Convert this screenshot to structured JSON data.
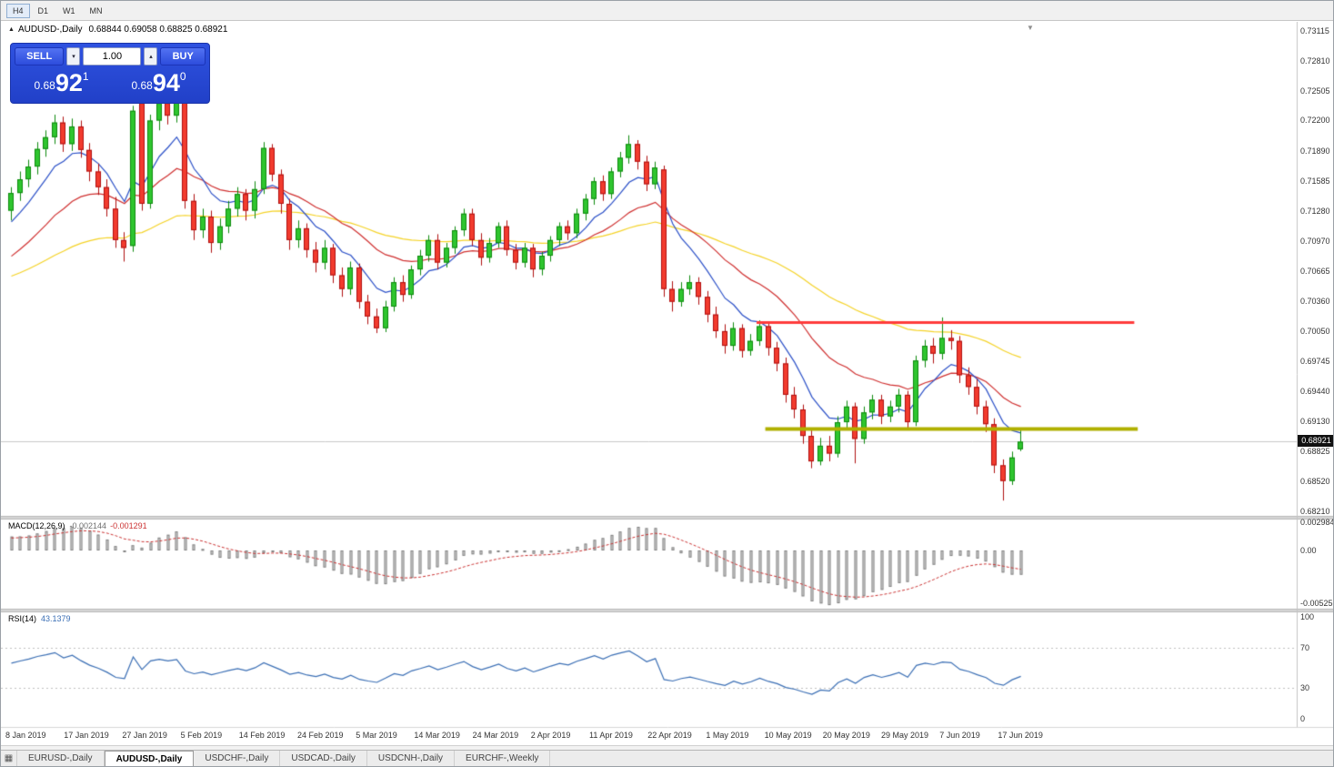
{
  "icons": {
    "oct_collapse": "▲",
    "spinner_up": "▴",
    "spinner_down": "▾",
    "shift_marker": "▼",
    "tabs_grid": "▦"
  },
  "toolbar": {
    "timeframes": [
      {
        "label": "H4",
        "active": true
      },
      {
        "label": "D1",
        "active": false
      },
      {
        "label": "W1",
        "active": false
      },
      {
        "label": "MN",
        "active": false
      }
    ]
  },
  "chart": {
    "title": "AUDUSD-,Daily",
    "ohlc_text": "0.68844 0.69058 0.68825 0.68921",
    "current_price": "0.68921"
  },
  "trade_panel": {
    "sell_label": "SELL",
    "buy_label": "BUY",
    "volume": "1.00",
    "sell_price": {
      "prefix": "0.68",
      "big": "92",
      "sup": "1"
    },
    "buy_price": {
      "prefix": "0.68",
      "big": "94",
      "sup": "0"
    }
  },
  "price_axis": {
    "labels": [
      "0.73115",
      "0.72810",
      "0.72505",
      "0.72200",
      "0.71890",
      "0.71585",
      "0.71280",
      "0.70970",
      "0.70665",
      "0.70360",
      "0.70050",
      "0.69745",
      "0.69440",
      "0.69130",
      "0.68825",
      "0.68520",
      "0.68210"
    ]
  },
  "macd_panel": {
    "name": "MACD(12,26,9)",
    "value_main": "-0.002144",
    "value_signal": "-0.001291",
    "axis": [
      "0.002984",
      "0.00",
      "-0.005256"
    ]
  },
  "rsi_panel": {
    "name": "RSI(14)",
    "value": "43.1379",
    "axis": [
      "100",
      "70",
      "30",
      "0"
    ]
  },
  "date_axis": [
    "8 Jan 2019",
    "17 Jan 2019",
    "27 Jan 2019",
    "5 Feb 2019",
    "14 Feb 2019",
    "24 Feb 2019",
    "5 Mar 2019",
    "14 Mar 2019",
    "24 Mar 2019",
    "2 Apr 2019",
    "11 Apr 2019",
    "22 Apr 2019",
    "1 May 2019",
    "10 May 2019",
    "20 May 2019",
    "29 May 2019",
    "7 Jun 2019",
    "17 Jun 2019"
  ],
  "tabs": [
    {
      "label": "EURUSD-,Daily",
      "active": false
    },
    {
      "label": "AUDUSD-,Daily",
      "active": true
    },
    {
      "label": "USDCHF-,Daily",
      "active": false
    },
    {
      "label": "USDCAD-,Daily",
      "active": false
    },
    {
      "label": "USDCNH-,Daily",
      "active": false
    },
    {
      "label": "EURCHF-,Weekly",
      "active": false
    }
  ],
  "chart_data": {
    "type": "candlestick",
    "symbol": "AUDUSD-",
    "timeframe": "Daily",
    "ohlc_current": {
      "open": 0.68844,
      "high": 0.69058,
      "low": 0.68825,
      "close": 0.68921
    },
    "current_price": 0.68921,
    "price_ticks": [
      0.73115,
      0.7281,
      0.72505,
      0.722,
      0.7189,
      0.71585,
      0.7128,
      0.7097,
      0.70665,
      0.7036,
      0.7005,
      0.69745,
      0.6944,
      0.6913,
      0.68825,
      0.6852,
      0.6821
    ],
    "candle_colors": {
      "up_fill": "#2fc52f",
      "up_border": "#0e8a0e",
      "down_fill": "#f23b2e",
      "down_border": "#b01010"
    },
    "candles": [
      [
        0.7128,
        0.7152,
        0.7118,
        0.7146
      ],
      [
        0.7146,
        0.7168,
        0.7138,
        0.716
      ],
      [
        0.716,
        0.718,
        0.7152,
        0.7173
      ],
      [
        0.7173,
        0.7198,
        0.7165,
        0.7191
      ],
      [
        0.7191,
        0.721,
        0.7183,
        0.7203
      ],
      [
        0.7203,
        0.7226,
        0.7196,
        0.7218
      ],
      [
        0.7218,
        0.7224,
        0.7188,
        0.7196
      ],
      [
        0.7196,
        0.7222,
        0.7189,
        0.7214
      ],
      [
        0.7214,
        0.722,
        0.7182,
        0.719
      ],
      [
        0.719,
        0.7197,
        0.7158,
        0.7168
      ],
      [
        0.7168,
        0.7176,
        0.7144,
        0.7152
      ],
      [
        0.7152,
        0.716,
        0.7122,
        0.713
      ],
      [
        0.713,
        0.7142,
        0.709,
        0.7098
      ],
      [
        0.7098,
        0.7106,
        0.7076,
        0.709
      ],
      [
        0.7092,
        0.7235,
        0.7086,
        0.723
      ],
      [
        0.7238,
        0.7242,
        0.7128,
        0.7135
      ],
      [
        0.7135,
        0.7226,
        0.713,
        0.722
      ],
      [
        0.722,
        0.7244,
        0.721,
        0.7238
      ],
      [
        0.7238,
        0.7248,
        0.7216,
        0.7225
      ],
      [
        0.7225,
        0.7245,
        0.7218,
        0.724
      ],
      [
        0.724,
        0.7243,
        0.713,
        0.7138
      ],
      [
        0.7138,
        0.7145,
        0.7098,
        0.7108
      ],
      [
        0.7108,
        0.713,
        0.71,
        0.7122
      ],
      [
        0.7122,
        0.7128,
        0.7085,
        0.7095
      ],
      [
        0.7095,
        0.712,
        0.7088,
        0.7112
      ],
      [
        0.7112,
        0.7138,
        0.7105,
        0.713
      ],
      [
        0.713,
        0.7152,
        0.7122,
        0.7145
      ],
      [
        0.7145,
        0.715,
        0.7118,
        0.7128
      ],
      [
        0.7128,
        0.7158,
        0.712,
        0.715
      ],
      [
        0.715,
        0.7198,
        0.7145,
        0.7192
      ],
      [
        0.7192,
        0.7196,
        0.7158,
        0.7165
      ],
      [
        0.7165,
        0.717,
        0.7125,
        0.7135
      ],
      [
        0.7135,
        0.714,
        0.7088,
        0.7098
      ],
      [
        0.7098,
        0.7118,
        0.709,
        0.711
      ],
      [
        0.711,
        0.7115,
        0.708,
        0.7088
      ],
      [
        0.7088,
        0.7096,
        0.7065,
        0.7075
      ],
      [
        0.7075,
        0.7098,
        0.7068,
        0.709
      ],
      [
        0.709,
        0.7094,
        0.7054,
        0.7062
      ],
      [
        0.7062,
        0.707,
        0.704,
        0.7048
      ],
      [
        0.7048,
        0.7076,
        0.7042,
        0.707
      ],
      [
        0.707,
        0.7074,
        0.7028,
        0.7035
      ],
      [
        0.7035,
        0.7042,
        0.7012,
        0.702
      ],
      [
        0.702,
        0.7028,
        0.7003,
        0.7008
      ],
      [
        0.7008,
        0.7036,
        0.7004,
        0.703
      ],
      [
        0.703,
        0.706,
        0.7025,
        0.7055
      ],
      [
        0.7055,
        0.7062,
        0.7035,
        0.7042
      ],
      [
        0.7042,
        0.7072,
        0.7038,
        0.7068
      ],
      [
        0.7068,
        0.7088,
        0.7062,
        0.7082
      ],
      [
        0.7082,
        0.7103,
        0.7076,
        0.7098
      ],
      [
        0.7098,
        0.7104,
        0.7068,
        0.7075
      ],
      [
        0.7075,
        0.7095,
        0.707,
        0.709
      ],
      [
        0.709,
        0.7112,
        0.7084,
        0.7108
      ],
      [
        0.7108,
        0.713,
        0.7102,
        0.7125
      ],
      [
        0.7125,
        0.713,
        0.7092,
        0.7098
      ],
      [
        0.7098,
        0.7105,
        0.7072,
        0.708
      ],
      [
        0.708,
        0.71,
        0.7075,
        0.7095
      ],
      [
        0.7095,
        0.7116,
        0.709,
        0.7112
      ],
      [
        0.7112,
        0.7118,
        0.7082,
        0.7088
      ],
      [
        0.7088,
        0.7094,
        0.7068,
        0.7075
      ],
      [
        0.7075,
        0.7095,
        0.707,
        0.709
      ],
      [
        0.709,
        0.7094,
        0.706,
        0.7068
      ],
      [
        0.7068,
        0.7086,
        0.7062,
        0.7082
      ],
      [
        0.7082,
        0.7102,
        0.7076,
        0.7098
      ],
      [
        0.7098,
        0.7116,
        0.7092,
        0.7112
      ],
      [
        0.7112,
        0.7118,
        0.7098,
        0.7105
      ],
      [
        0.7105,
        0.713,
        0.71,
        0.7125
      ],
      [
        0.7125,
        0.7145,
        0.7118,
        0.714
      ],
      [
        0.714,
        0.7162,
        0.7134,
        0.7158
      ],
      [
        0.7158,
        0.7164,
        0.7138,
        0.7145
      ],
      [
        0.7145,
        0.7172,
        0.714,
        0.7168
      ],
      [
        0.7168,
        0.7188,
        0.7162,
        0.7182
      ],
      [
        0.7182,
        0.7205,
        0.7176,
        0.7196
      ],
      [
        0.7196,
        0.72,
        0.717,
        0.7178
      ],
      [
        0.7178,
        0.7184,
        0.7148,
        0.7155
      ],
      [
        0.7155,
        0.7178,
        0.715,
        0.7172
      ],
      [
        0.717,
        0.7174,
        0.704,
        0.7048
      ],
      [
        0.7048,
        0.7056,
        0.7025,
        0.7035
      ],
      [
        0.7035,
        0.7055,
        0.703,
        0.7048
      ],
      [
        0.7048,
        0.7062,
        0.7042,
        0.7055
      ],
      [
        0.7055,
        0.706,
        0.7032,
        0.704
      ],
      [
        0.704,
        0.7046,
        0.7014,
        0.7022
      ],
      [
        0.7022,
        0.703,
        0.6998,
        0.7005
      ],
      [
        0.7005,
        0.7012,
        0.6982,
        0.699
      ],
      [
        0.699,
        0.7014,
        0.6985,
        0.7008
      ],
      [
        0.7008,
        0.7012,
        0.6978,
        0.6985
      ],
      [
        0.6985,
        0.7002,
        0.698,
        0.6995
      ],
      [
        0.6995,
        0.7016,
        0.699,
        0.701
      ],
      [
        0.701,
        0.7014,
        0.698,
        0.6988
      ],
      [
        0.6988,
        0.6994,
        0.6964,
        0.6972
      ],
      [
        0.6972,
        0.6978,
        0.6932,
        0.694
      ],
      [
        0.694,
        0.6948,
        0.6916,
        0.6925
      ],
      [
        0.6925,
        0.693,
        0.689,
        0.6898
      ],
      [
        0.6898,
        0.6904,
        0.6865,
        0.6872
      ],
      [
        0.6872,
        0.6896,
        0.6868,
        0.6888
      ],
      [
        0.6888,
        0.6898,
        0.6872,
        0.688
      ],
      [
        0.688,
        0.6918,
        0.6876,
        0.6912
      ],
      [
        0.6912,
        0.6934,
        0.6906,
        0.6928
      ],
      [
        0.6928,
        0.6932,
        0.687,
        0.6895
      ],
      [
        0.6895,
        0.6928,
        0.689,
        0.6922
      ],
      [
        0.6922,
        0.694,
        0.6915,
        0.6935
      ],
      [
        0.6935,
        0.694,
        0.691,
        0.6918
      ],
      [
        0.6918,
        0.6934,
        0.6912,
        0.6928
      ],
      [
        0.6928,
        0.6946,
        0.6922,
        0.694
      ],
      [
        0.694,
        0.6944,
        0.6905,
        0.6912
      ],
      [
        0.6912,
        0.698,
        0.6908,
        0.6975
      ],
      [
        0.6975,
        0.6996,
        0.6968,
        0.699
      ],
      [
        0.699,
        0.6998,
        0.6972,
        0.6982
      ],
      [
        0.6982,
        0.7019,
        0.6976,
        0.6998
      ],
      [
        0.6998,
        0.7006,
        0.6986,
        0.6995
      ],
      [
        0.6995,
        0.7,
        0.6952,
        0.696
      ],
      [
        0.696,
        0.6968,
        0.694,
        0.6948
      ],
      [
        0.6948,
        0.6956,
        0.692,
        0.6928
      ],
      [
        0.6928,
        0.6934,
        0.6902,
        0.691
      ],
      [
        0.691,
        0.6916,
        0.686,
        0.6868
      ],
      [
        0.6868,
        0.6874,
        0.6832,
        0.6852
      ],
      [
        0.6852,
        0.6882,
        0.6848,
        0.6876
      ],
      [
        0.68844,
        0.69058,
        0.68825,
        0.68921
      ]
    ],
    "moving_averages": [
      {
        "name": "fast",
        "period": 8,
        "seed": 0.7108,
        "color": "#2b50c8"
      },
      {
        "name": "medium",
        "period": 21,
        "seed": 0.7075,
        "color": "#d03030"
      },
      {
        "name": "slow",
        "period": 55,
        "seed": 0.7058,
        "color": "#f5d327"
      }
    ],
    "horizontal_lines": [
      {
        "name": "resistance",
        "price": 0.7014,
        "color": "#ff3b3b",
        "width": 3,
        "from_index": 86,
        "to_index": 129.4
      },
      {
        "name": "support",
        "price": 0.6906,
        "color": "#b0b000",
        "width": 4,
        "from_index": 87,
        "to_index": 129.8
      }
    ],
    "indicators": {
      "macd": {
        "fast": 12,
        "slow": 26,
        "signal": 9,
        "current_main": -0.002144,
        "current_signal": -0.001291,
        "axis_ticks": [
          0.002984,
          0,
          -0.005256
        ],
        "hist_fill": "#dcdcdc",
        "hist_border": "#828282",
        "signal_color": "#cc3333",
        "seed_offset": 0.0015,
        "signal_seed": 0.0012
      },
      "rsi": {
        "period": 14,
        "current": 43.1379,
        "levels": [
          30,
          70
        ],
        "axis_ticks": [
          100,
          70,
          30,
          0
        ],
        "color": "#3b6fb5",
        "seed_gain": 0.0012,
        "seed_loss": 0.001
      }
    }
  }
}
